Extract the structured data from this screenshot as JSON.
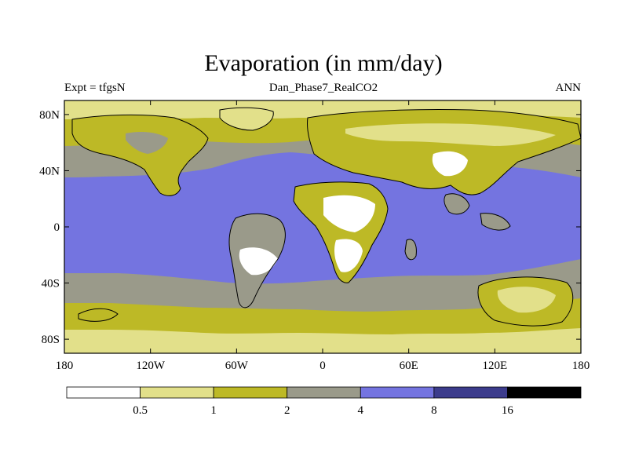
{
  "title": "Evaporation (in mm/day)",
  "left_string": "Expt = tfgsN",
  "center_string": "Dan_Phase7_RealCO2",
  "right_string": "ANN",
  "map": {
    "projection": "cylindrical-equidistant",
    "lon_range": [
      -180,
      180
    ],
    "lat_range": [
      -90,
      90
    ],
    "lon_ticks": [
      {
        "value": -180,
        "label": "180"
      },
      {
        "value": -120,
        "label": "120W"
      },
      {
        "value": -60,
        "label": "60W"
      },
      {
        "value": 0,
        "label": "0"
      },
      {
        "value": 60,
        "label": "60E"
      },
      {
        "value": 120,
        "label": "120E"
      },
      {
        "value": 180,
        "label": "180"
      }
    ],
    "lat_ticks": [
      {
        "value": 80,
        "label": "80N"
      },
      {
        "value": 40,
        "label": "40N"
      },
      {
        "value": 0,
        "label": "0"
      },
      {
        "value": -40,
        "label": "40S"
      },
      {
        "value": -80,
        "label": "80S"
      }
    ]
  },
  "colorbar": {
    "levels": [
      "0.5",
      "1",
      "2",
      "4",
      "8",
      "16"
    ],
    "colors": [
      "#ffffff",
      "#e2e08a",
      "#bdb926",
      "#9a9a8a",
      "#7474e0",
      "#3c3c8c",
      "#000000"
    ]
  },
  "palette": {
    "white": "#ffffff",
    "pale": "#e2e08a",
    "olive": "#bdb926",
    "gray": "#9a9a8a",
    "blue": "#7474e0",
    "navy": "#3c3c8c",
    "black": "#000000"
  }
}
